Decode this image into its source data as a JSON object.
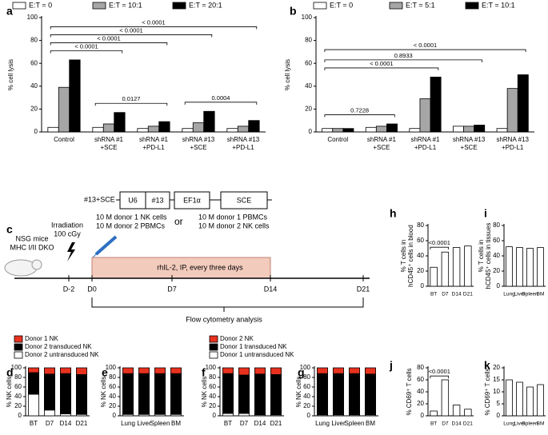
{
  "chart_data": [
    {
      "type": "grouped_bar",
      "panel": "a",
      "ylabel": "% cell lysis",
      "categories": [
        [
          "Control"
        ],
        [
          "shRNA #1",
          "+SCE"
        ],
        [
          "shRNA #1",
          "+PD-L1"
        ],
        [
          "shRNA #13",
          "+SCE"
        ],
        [
          "shRNA #13",
          "+PD-L1"
        ]
      ],
      "series": [
        {
          "name": "E:T = 0",
          "color": "#ffffff",
          "values": [
            4,
            4,
            3,
            3,
            3
          ]
        },
        {
          "name": "E:T = 10:1",
          "color": "#a6a6a6",
          "values": [
            39,
            7,
            5,
            8,
            5
          ]
        },
        {
          "name": "E:T = 20:1",
          "color": "#000000",
          "values": [
            63,
            17,
            9,
            18,
            10
          ]
        }
      ],
      "ylim": [
        0,
        100
      ],
      "yticks": [
        0,
        20,
        40,
        60,
        80,
        100
      ],
      "legend": "top",
      "annotations": [
        {
          "label": "< 0.0001",
          "from": 0,
          "to": 1
        },
        {
          "label": "< 0.0001",
          "from": 0,
          "to": 2
        },
        {
          "label": "< 0.0001",
          "from": 0,
          "to": 3
        },
        {
          "label": "< 0.0001",
          "from": 0,
          "to": 4
        },
        {
          "label": "0.0127",
          "from": 1,
          "to": 2
        },
        {
          "label": "0.0004",
          "from": 3,
          "to": 4
        }
      ]
    },
    {
      "type": "grouped_bar",
      "panel": "b",
      "ylabel": "% cell lysis",
      "categories": [
        [
          "Control"
        ],
        [
          "shRNA #1",
          "+SCE"
        ],
        [
          "shRNA #1",
          "+PD-L1"
        ],
        [
          "shRNA #13",
          "+SCE"
        ],
        [
          "shRNA #13",
          "+PD-L1"
        ]
      ],
      "series": [
        {
          "name": "E:T = 0",
          "color": "#ffffff",
          "values": [
            3,
            4,
            3,
            5,
            3
          ]
        },
        {
          "name": "E:T = 5:1",
          "color": "#a6a6a6",
          "values": [
            3,
            5,
            29,
            5,
            38
          ]
        },
        {
          "name": "E:T = 10:1",
          "color": "#000000",
          "values": [
            3,
            7,
            48,
            6,
            50
          ]
        }
      ],
      "ylim": [
        0,
        100
      ],
      "yticks": [
        0,
        20,
        40,
        60,
        80,
        100
      ],
      "legend": "top",
      "annotations": [
        {
          "label": "0.7228",
          "from": 0,
          "to": 1
        },
        {
          "label": "< 0.0001",
          "from": 0,
          "to": 2
        },
        {
          "label": "0.8933",
          "from": 0,
          "to": 3
        },
        {
          "label": "< 0.0001",
          "from": 0,
          "to": 4
        }
      ]
    },
    {
      "type": "stacked_bar",
      "panel": "d",
      "ylabel": "% NK cells",
      "categories": [
        "BT",
        "D7",
        "D14",
        "D21"
      ],
      "series": [
        {
          "name": "Donor 1 NK",
          "color": "#e8321e",
          "values": [
            10,
            13,
            12,
            14
          ]
        },
        {
          "name": "Donor 2 transduced NK",
          "color": "#000000",
          "values": [
            45,
            75,
            84,
            83
          ]
        },
        {
          "name": "Donor 2 untransduced NK",
          "color": "#ffffff",
          "values": [
            45,
            12,
            4,
            3
          ]
        }
      ],
      "ylim": [
        0,
        100
      ],
      "yticks": [
        0,
        20,
        40,
        60,
        80,
        100
      ],
      "legend": "above"
    },
    {
      "type": "stacked_bar",
      "panel": "e",
      "ylabel": "% NK cells",
      "categories": [
        "Lung",
        "Liver",
        "Spleen",
        "BM"
      ],
      "series": [
        {
          "color": "#e8321e",
          "values": [
            12,
            12,
            12,
            12
          ]
        },
        {
          "color": "#000000",
          "values": [
            85,
            85,
            85,
            85
          ]
        },
        {
          "color": "#ffffff",
          "values": [
            3,
            3,
            3,
            3
          ]
        }
      ],
      "ylim": [
        0,
        100
      ],
      "yticks": [
        0,
        20,
        40,
        60,
        80,
        100
      ]
    },
    {
      "type": "stacked_bar",
      "panel": "f",
      "ylabel": "% NK cells",
      "categories": [
        "BT",
        "D7",
        "D14",
        "D21"
      ],
      "series": [
        {
          "name": "Donor 2 NK",
          "color": "#e8321e",
          "values": [
            12,
            15,
            13,
            14
          ]
        },
        {
          "name": "Donor 1 transduced NK",
          "color": "#000000",
          "values": [
            83,
            80,
            85,
            84
          ]
        },
        {
          "name": "Donor 1 untransduced NK",
          "color": "#ffffff",
          "values": [
            5,
            5,
            2,
            2
          ]
        }
      ],
      "ylim": [
        0,
        100
      ],
      "yticks": [
        0,
        20,
        40,
        60,
        80,
        100
      ],
      "legend": "above"
    },
    {
      "type": "stacked_bar",
      "panel": "g",
      "ylabel": "% NK cells",
      "categories": [
        "Lung",
        "Liver",
        "Spleen",
        "BM"
      ],
      "series": [
        {
          "color": "#e8321e",
          "values": [
            12,
            12,
            12,
            13
          ]
        },
        {
          "color": "#000000",
          "values": [
            86,
            86,
            86,
            85
          ]
        },
        {
          "color": "#ffffff",
          "values": [
            2,
            2,
            2,
            2
          ]
        }
      ],
      "ylim": [
        0,
        100
      ],
      "yticks": [
        0,
        20,
        40,
        60,
        80,
        100
      ]
    },
    {
      "type": "bar",
      "panel": "h",
      "ylabel": [
        "% T cells in",
        "hCD45⁺ cells in blood"
      ],
      "categories": [
        "BT",
        "D7",
        "D14",
        "D21"
      ],
      "values": [
        25,
        45,
        51,
        53
      ],
      "color": "#ffffff",
      "ylim": [
        0,
        80
      ],
      "yticks": [
        0,
        20,
        40,
        60,
        80
      ],
      "annotations": [
        {
          "label": "<0.0001",
          "from": 0,
          "to": 1
        }
      ]
    },
    {
      "type": "bar",
      "panel": "i",
      "ylabel": [
        "% T cells in",
        "hCD45⁺ cells in tissues"
      ],
      "categories": [
        "Lung",
        "Liver",
        "Spleen",
        "BM"
      ],
      "values": [
        52,
        51,
        50,
        51
      ],
      "color": "#ffffff",
      "ylim": [
        0,
        80
      ],
      "yticks": [
        0,
        20,
        40,
        60,
        80
      ]
    },
    {
      "type": "bar",
      "panel": "j",
      "ylabel": "% CD69⁺ T cells",
      "categories": [
        "BT",
        "D7",
        "D14",
        "D21"
      ],
      "values": [
        8,
        60,
        18,
        11
      ],
      "color": "#ffffff",
      "ylim": [
        0,
        80
      ],
      "yticks": [
        0,
        20,
        40,
        60,
        80
      ],
      "annotations": [
        {
          "label": "<0.0001",
          "from": 0,
          "to": 1
        }
      ]
    },
    {
      "type": "bar",
      "panel": "k",
      "ylabel": "% CD69⁺ T cells",
      "categories": [
        "Lung",
        "Liver",
        "Spleen",
        "BM"
      ],
      "values": [
        15,
        14,
        12,
        13
      ],
      "color": "#ffffff",
      "ylim": [
        0,
        20
      ],
      "yticks": [
        0,
        5,
        10,
        15,
        20
      ]
    }
  ],
  "diagram": {
    "panel": "c",
    "construct": {
      "name": "#13+SCE",
      "parts": [
        "U6",
        "#13",
        "EF1α",
        "SCE"
      ]
    },
    "mouse": [
      "NSG mice",
      "MHC I/II DKO"
    ],
    "irradiation": [
      "Irradiation",
      "100 cGy"
    ],
    "option1": [
      "10 M donor 1 NK cells",
      "10 M donor 2 PBMCs"
    ],
    "or": "or",
    "option2": [
      "10 M donor 1 PBMCs",
      "10 M donor 2 NK cells"
    ],
    "treatment": "rhIL-2, IP, every three days",
    "days": [
      "D-2",
      "D0",
      "D7",
      "D14",
      "D21"
    ],
    "analysis": "Flow cytometry analysis"
  }
}
